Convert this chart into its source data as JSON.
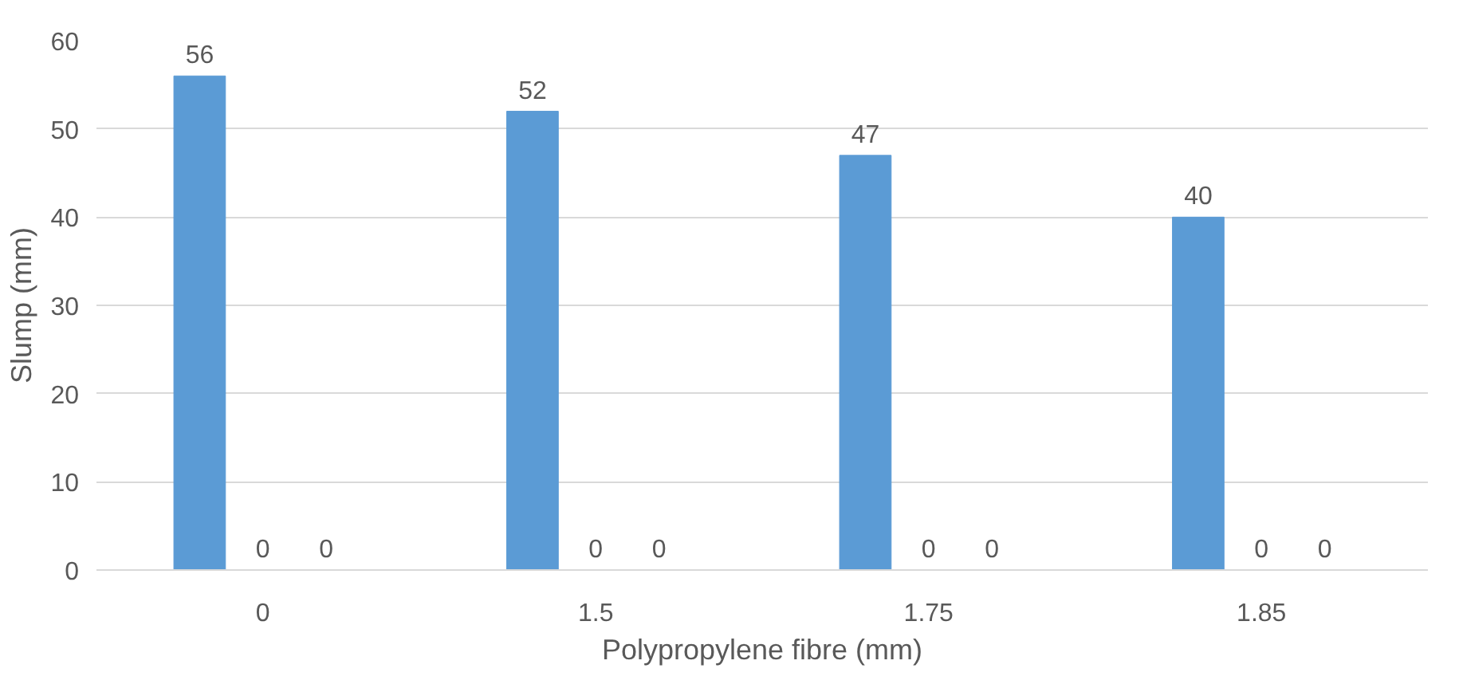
{
  "chart_data": {
    "type": "bar",
    "xlabel": "Polypropylene fibre (mm)",
    "ylabel": "Slump (mm)",
    "categories": [
      "0",
      "1.5",
      "1.75",
      "1.85"
    ],
    "series": [
      {
        "color": "#5b9bd5",
        "values": [
          56,
          52,
          47,
          40
        ]
      },
      {
        "color": "#ed7d31",
        "values": [
          0,
          0,
          0,
          0
        ]
      },
      {
        "color": "#a5a5a5",
        "values": [
          0,
          0,
          0,
          0
        ]
      }
    ],
    "ylim": [
      0,
      60
    ],
    "yticks": [
      0,
      10,
      20,
      30,
      40,
      50,
      60
    ],
    "grid": "y",
    "data_labels": true
  }
}
